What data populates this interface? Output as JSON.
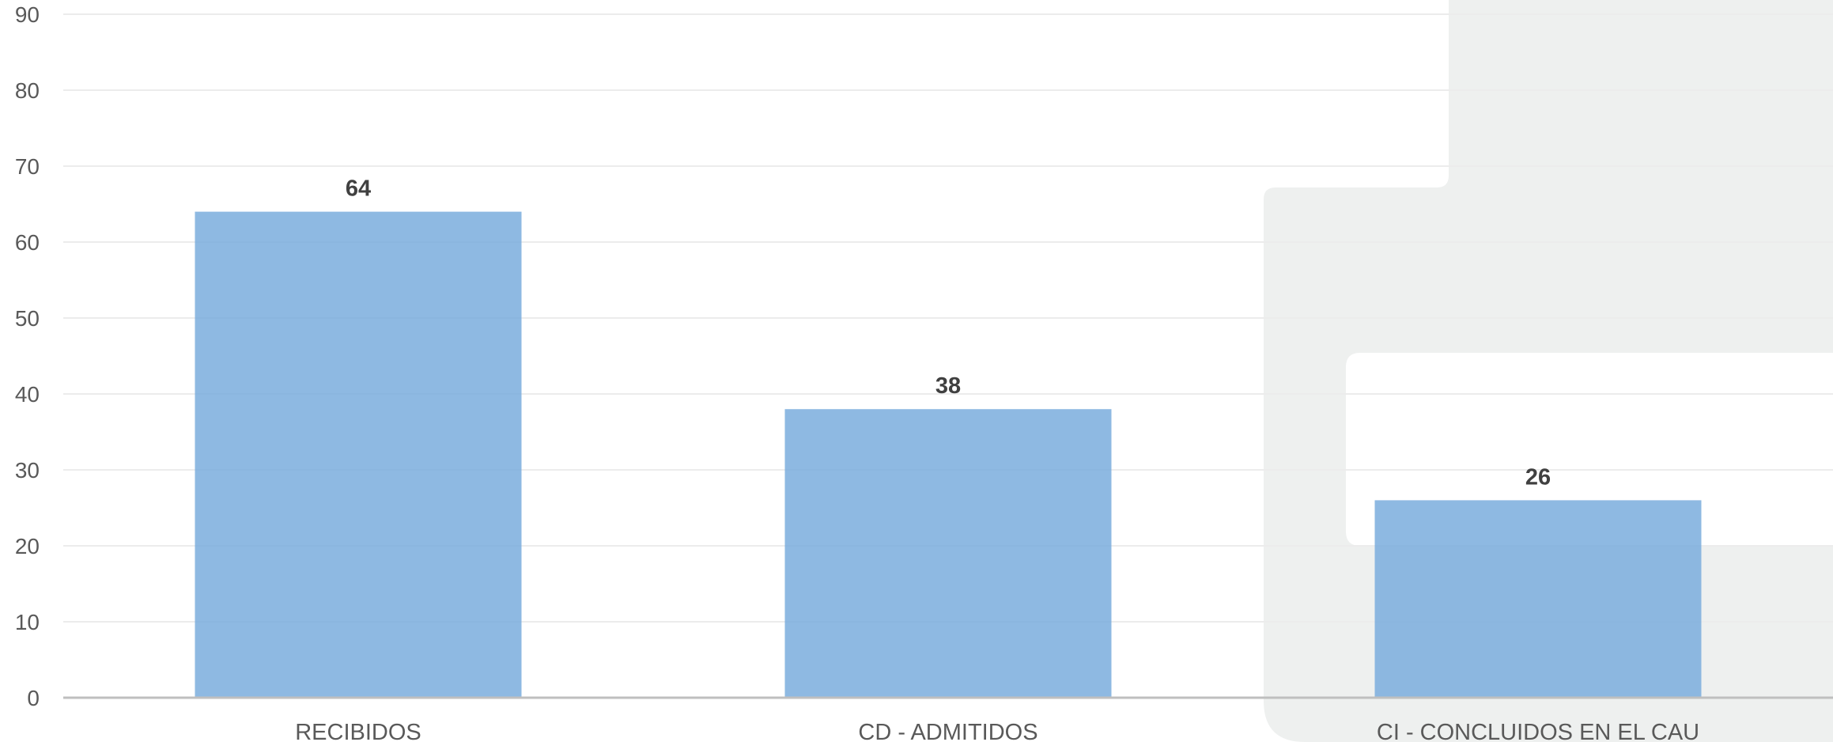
{
  "chart_data": {
    "type": "bar",
    "categories": [
      "RECIBIDOS",
      "CD - ADMITIDOS",
      "CI - CONCLUIDOS EN EL CAU"
    ],
    "values": [
      64,
      38,
      26
    ],
    "data_labels": [
      "64",
      "38",
      "26"
    ],
    "ylim": [
      0,
      90
    ],
    "yticks": [
      0,
      10,
      20,
      30,
      40,
      50,
      60,
      70,
      80,
      90
    ],
    "grid": true,
    "legend": "none",
    "title": "",
    "xlabel": "",
    "ylabel": ""
  },
  "colors": {
    "bar": "#7aaddd",
    "grid": "#ececec",
    "axis": "#bfbfbf",
    "watermark": "#eef0ef"
  }
}
